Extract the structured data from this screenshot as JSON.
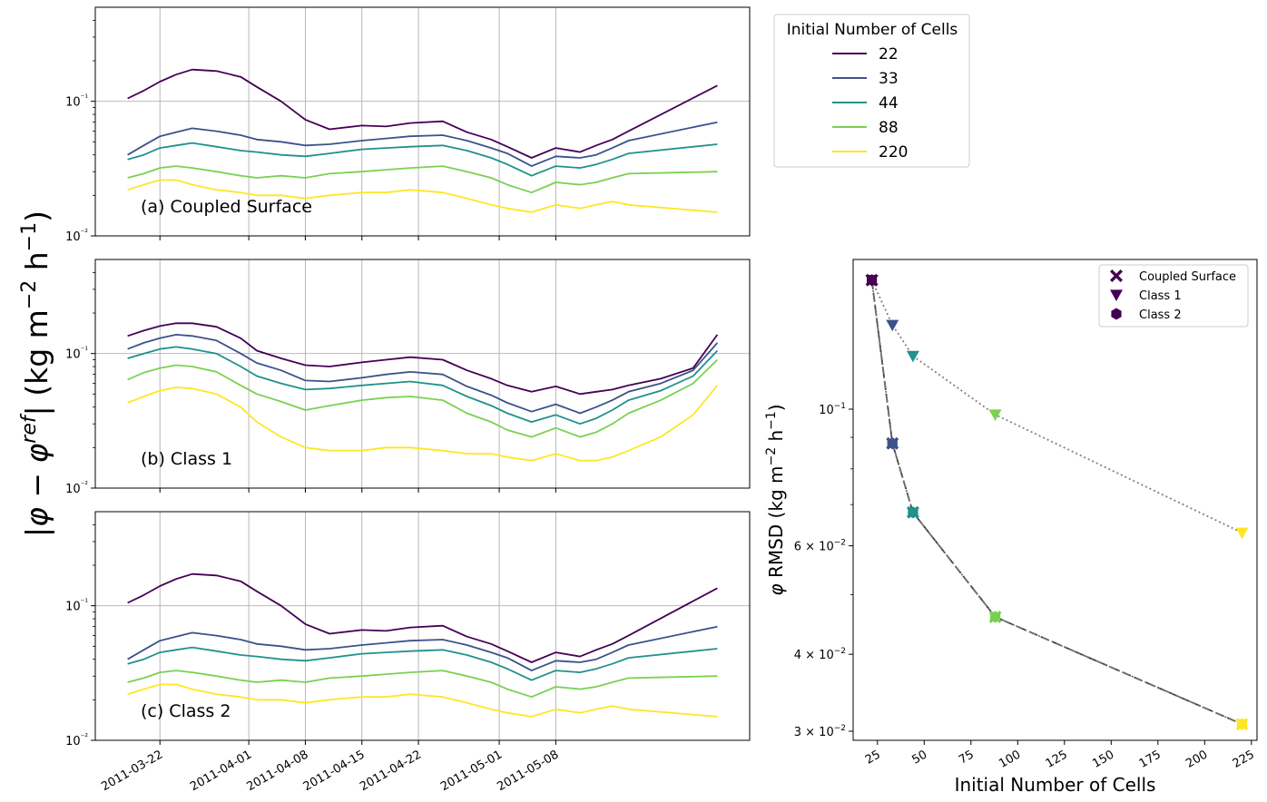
{
  "y_label_left": "|φ − φ",
  "y_label_left_sup": "ref",
  "y_label_left_rest": "| (kg m",
  "y_label_left_exp1": "−2",
  "y_label_left_mid": " h",
  "y_label_left_exp2": "−1",
  "y_label_left_end": ")",
  "legend_title": "Initial Number of Cells",
  "cell_counts": [
    "22",
    "33",
    "44",
    "88",
    "220"
  ],
  "colors": [
    "#440154",
    "#3b528b",
    "#21918c",
    "#7ad151",
    "#fde725"
  ],
  "series_keys": [
    "n22",
    "n33",
    "n44",
    "n88",
    "n220"
  ],
  "chart_data": [
    {
      "type": "line",
      "title": "(a) Coupled Surface",
      "yscale": "log",
      "ylim": [
        0.01,
        0.5
      ],
      "ytick_labels": [
        "10⁻²",
        "10⁻¹"
      ],
      "ytick_values": [
        0.01,
        0.1
      ],
      "xlim_day": [
        -8,
        73
      ],
      "xticks_day": [
        0,
        11,
        18,
        25,
        32,
        42,
        49
      ],
      "xtick_labels": [
        "2011-03-22",
        "2011-04-01",
        "2011-04-08",
        "2011-04-15",
        "2011-04-22",
        "2011-05-01",
        "2011-05-08"
      ],
      "x_day": [
        -4,
        -2,
        0,
        2,
        4,
        7,
        10,
        12,
        15,
        18,
        21,
        25,
        28,
        31,
        35,
        38,
        41,
        43,
        46,
        49,
        52,
        54,
        56,
        58,
        69
      ],
      "series": {
        "n22": [
          0.105,
          0.12,
          0.14,
          0.158,
          0.172,
          0.168,
          0.152,
          0.128,
          0.1,
          0.073,
          0.062,
          0.066,
          0.065,
          0.069,
          0.071,
          0.059,
          0.052,
          0.046,
          0.038,
          0.045,
          0.042,
          0.047,
          0.052,
          0.06,
          0.131
        ],
        "n33": [
          0.04,
          0.047,
          0.055,
          0.059,
          0.063,
          0.06,
          0.056,
          0.052,
          0.05,
          0.047,
          0.048,
          0.051,
          0.053,
          0.055,
          0.056,
          0.051,
          0.045,
          0.041,
          0.033,
          0.039,
          0.038,
          0.04,
          0.045,
          0.051,
          0.07
        ],
        "n44": [
          0.037,
          0.04,
          0.045,
          0.047,
          0.049,
          0.046,
          0.043,
          0.042,
          0.04,
          0.039,
          0.041,
          0.044,
          0.045,
          0.046,
          0.047,
          0.043,
          0.038,
          0.034,
          0.028,
          0.033,
          0.032,
          0.034,
          0.037,
          0.041,
          0.048
        ],
        "n88": [
          0.027,
          0.029,
          0.032,
          0.033,
          0.032,
          0.03,
          0.028,
          0.027,
          0.028,
          0.027,
          0.029,
          0.03,
          0.031,
          0.032,
          0.033,
          0.03,
          0.027,
          0.024,
          0.021,
          0.025,
          0.024,
          0.025,
          0.027,
          0.029,
          0.03
        ],
        "n220": [
          0.022,
          0.024,
          0.026,
          0.026,
          0.024,
          0.022,
          0.021,
          0.02,
          0.02,
          0.019,
          0.02,
          0.021,
          0.021,
          0.022,
          0.021,
          0.019,
          0.017,
          0.016,
          0.015,
          0.017,
          0.016,
          0.017,
          0.018,
          0.017,
          0.015
        ]
      }
    },
    {
      "type": "line",
      "title": "(b) Class 1",
      "yscale": "log",
      "ylim": [
        0.01,
        0.5
      ],
      "ytick_labels": [
        "10⁻²",
        "10⁻¹"
      ],
      "ytick_values": [
        0.01,
        0.1
      ],
      "xlim_day": [
        -8,
        73
      ],
      "xticks_day": [
        0,
        11,
        18,
        25,
        32,
        42,
        49
      ],
      "xtick_labels": [
        "2011-03-22",
        "2011-04-01",
        "2011-04-08",
        "2011-04-15",
        "2011-04-22",
        "2011-05-01",
        "2011-05-08"
      ],
      "x_day": [
        -4,
        -2,
        0,
        2,
        4,
        7,
        10,
        12,
        15,
        18,
        21,
        25,
        28,
        31,
        35,
        38,
        41,
        43,
        46,
        49,
        52,
        54,
        56,
        58,
        62,
        66,
        69
      ],
      "series": {
        "n22": [
          0.135,
          0.148,
          0.16,
          0.168,
          0.168,
          0.158,
          0.13,
          0.105,
          0.092,
          0.082,
          0.08,
          0.086,
          0.09,
          0.094,
          0.09,
          0.075,
          0.065,
          0.058,
          0.052,
          0.057,
          0.05,
          0.052,
          0.054,
          0.058,
          0.065,
          0.078,
          0.138
        ],
        "n33": [
          0.108,
          0.12,
          0.13,
          0.138,
          0.135,
          0.125,
          0.1,
          0.085,
          0.075,
          0.063,
          0.062,
          0.066,
          0.07,
          0.073,
          0.07,
          0.057,
          0.049,
          0.043,
          0.037,
          0.042,
          0.036,
          0.04,
          0.045,
          0.052,
          0.06,
          0.075,
          0.12
        ],
        "n44": [
          0.092,
          0.1,
          0.108,
          0.112,
          0.108,
          0.1,
          0.08,
          0.068,
          0.06,
          0.054,
          0.055,
          0.058,
          0.06,
          0.062,
          0.058,
          0.048,
          0.041,
          0.036,
          0.031,
          0.035,
          0.03,
          0.033,
          0.038,
          0.045,
          0.053,
          0.068,
          0.105
        ],
        "n88": [
          0.064,
          0.072,
          0.078,
          0.082,
          0.08,
          0.073,
          0.058,
          0.05,
          0.044,
          0.038,
          0.041,
          0.045,
          0.047,
          0.048,
          0.045,
          0.036,
          0.031,
          0.027,
          0.024,
          0.028,
          0.024,
          0.026,
          0.03,
          0.036,
          0.045,
          0.06,
          0.09
        ],
        "n220": [
          0.043,
          0.048,
          0.053,
          0.056,
          0.055,
          0.05,
          0.04,
          0.031,
          0.024,
          0.02,
          0.019,
          0.019,
          0.02,
          0.02,
          0.019,
          0.018,
          0.018,
          0.017,
          0.016,
          0.018,
          0.016,
          0.016,
          0.017,
          0.019,
          0.024,
          0.035,
          0.058
        ]
      }
    },
    {
      "type": "line",
      "title": "(c) Class 2",
      "yscale": "log",
      "ylim": [
        0.01,
        0.5
      ],
      "ytick_labels": [
        "10⁻²",
        "10⁻¹"
      ],
      "ytick_values": [
        0.01,
        0.1
      ],
      "xlim_day": [
        -8,
        73
      ],
      "xticks_day": [
        0,
        11,
        18,
        25,
        32,
        42,
        49
      ],
      "xtick_labels": [
        "2011-03-22",
        "2011-04-01",
        "2011-04-08",
        "2011-04-15",
        "2011-04-22",
        "2011-05-01",
        "2011-05-08"
      ],
      "x_day": [
        -4,
        -2,
        0,
        2,
        4,
        7,
        10,
        12,
        15,
        18,
        21,
        25,
        28,
        31,
        35,
        38,
        41,
        43,
        46,
        49,
        52,
        54,
        56,
        58,
        69
      ],
      "series": {
        "n22": [
          0.105,
          0.12,
          0.14,
          0.158,
          0.172,
          0.168,
          0.152,
          0.128,
          0.1,
          0.073,
          0.062,
          0.066,
          0.065,
          0.069,
          0.071,
          0.059,
          0.052,
          0.046,
          0.038,
          0.045,
          0.042,
          0.047,
          0.052,
          0.06,
          0.135
        ],
        "n33": [
          0.04,
          0.047,
          0.055,
          0.059,
          0.063,
          0.06,
          0.056,
          0.052,
          0.05,
          0.047,
          0.048,
          0.051,
          0.053,
          0.055,
          0.056,
          0.051,
          0.045,
          0.041,
          0.033,
          0.039,
          0.038,
          0.04,
          0.045,
          0.051,
          0.07
        ],
        "n44": [
          0.037,
          0.04,
          0.045,
          0.047,
          0.049,
          0.046,
          0.043,
          0.042,
          0.04,
          0.039,
          0.041,
          0.044,
          0.045,
          0.046,
          0.047,
          0.043,
          0.038,
          0.034,
          0.028,
          0.033,
          0.032,
          0.034,
          0.037,
          0.041,
          0.048
        ],
        "n88": [
          0.027,
          0.029,
          0.032,
          0.033,
          0.032,
          0.03,
          0.028,
          0.027,
          0.028,
          0.027,
          0.029,
          0.03,
          0.031,
          0.032,
          0.033,
          0.03,
          0.027,
          0.024,
          0.021,
          0.025,
          0.024,
          0.025,
          0.027,
          0.029,
          0.03
        ],
        "n220": [
          0.022,
          0.024,
          0.026,
          0.026,
          0.024,
          0.022,
          0.021,
          0.02,
          0.02,
          0.019,
          0.02,
          0.021,
          0.021,
          0.022,
          0.021,
          0.019,
          0.017,
          0.016,
          0.015,
          0.017,
          0.016,
          0.017,
          0.018,
          0.017,
          0.015
        ]
      }
    },
    {
      "type": "scatter",
      "title": "",
      "xlabel": "Initial Number of Cells",
      "ylabel_main": "φ RMSD (kg m",
      "ylabel_exp1": "−2",
      "ylabel_mid": " h",
      "ylabel_exp2": "−1",
      "ylabel_end": ")",
      "yscale": "log",
      "xlim": [
        12,
        228
      ],
      "ylim": [
        0.029,
        0.175
      ],
      "xticks": [
        25,
        50,
        75,
        100,
        125,
        150,
        175,
        200,
        225
      ],
      "xtick_labels": [
        "25",
        "50",
        "75",
        "100",
        "125",
        "150",
        "175",
        "200",
        "225"
      ],
      "ytick_values": [
        0.1,
        0.06,
        0.04,
        0.03
      ],
      "ytick_mantissas": [
        "",
        "6 × ",
        "4 × ",
        "3 × "
      ],
      "ytick_bases": [
        "10",
        "10",
        "10",
        "10"
      ],
      "ytick_exps": [
        "−1",
        "−2",
        "−2",
        "−2"
      ],
      "x": [
        22,
        33,
        44,
        88,
        220
      ],
      "series": [
        {
          "name": "Coupled Surface",
          "marker": "X",
          "line": "dashed",
          "values": [
            0.162,
            0.088,
            0.068,
            0.046,
            0.0308
          ]
        },
        {
          "name": "Class 1",
          "marker": "v",
          "line": "dotted",
          "values": [
            0.162,
            0.137,
            0.122,
            0.098,
            0.063
          ]
        },
        {
          "name": "Class 2",
          "marker": "hexagon",
          "line": "dashdot",
          "values": [
            0.162,
            0.088,
            0.068,
            0.046,
            0.0308
          ]
        }
      ],
      "legend_position": "upper right"
    }
  ]
}
